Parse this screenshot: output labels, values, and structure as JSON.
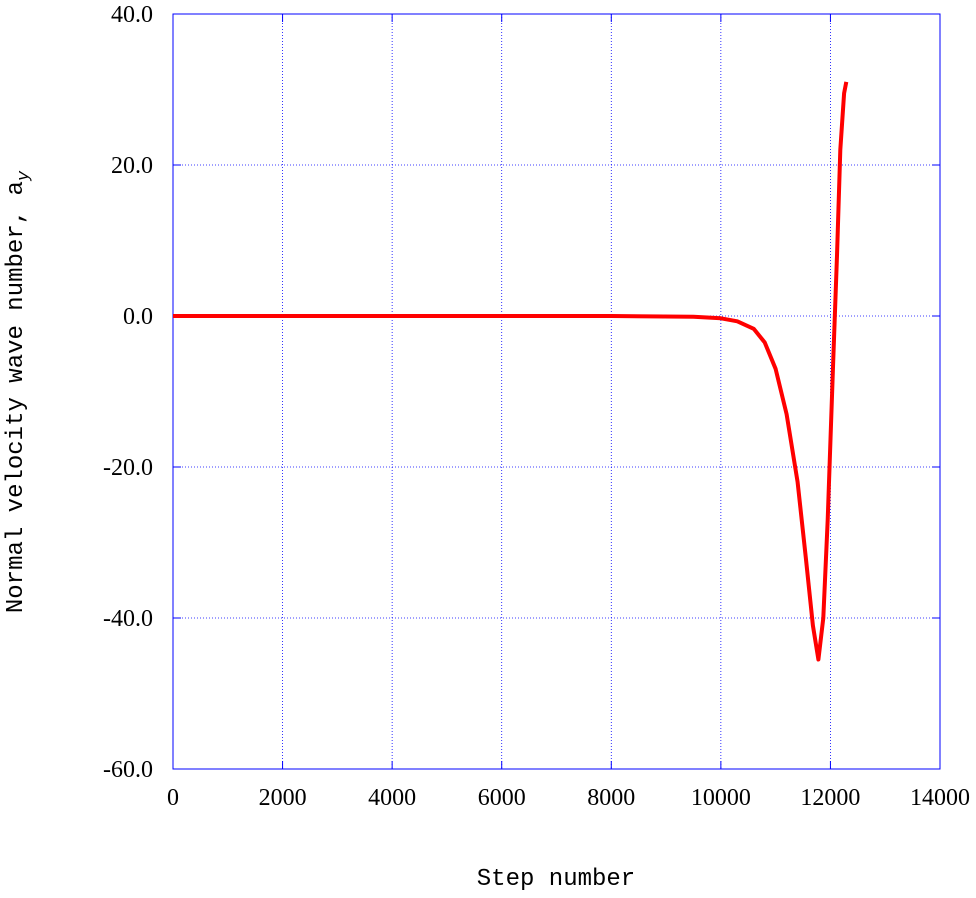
{
  "chart_data": {
    "type": "line",
    "xlabel": "Step number",
    "ylabel": "Normal velocity wave number, a",
    "ylabel_sub": "y",
    "x": [
      0,
      2000,
      4000,
      6000,
      8000,
      9500,
      10000,
      10300,
      10600,
      10800,
      11000,
      11200,
      11400,
      11550,
      11680,
      11780,
      11870,
      11950,
      12050,
      12120,
      12180,
      12250,
      12290
    ],
    "series": [
      {
        "color": "#ff0000",
        "values": [
          0,
          0,
          0,
          0,
          0,
          -0.1,
          -0.3,
          -0.7,
          -1.7,
          -3.5,
          -7,
          -13,
          -22,
          -32,
          -41,
          -45.5,
          -40,
          -27,
          -6,
          8,
          22,
          29.5,
          31
        ]
      }
    ],
    "xlim": [
      0,
      14000
    ],
    "xticks": [
      0,
      2000,
      4000,
      6000,
      8000,
      10000,
      12000,
      14000
    ],
    "ylim": [
      -60,
      40
    ],
    "yticks": [
      {
        "value": -60,
        "label": "-60.0"
      },
      {
        "value": -40,
        "label": "-40.0"
      },
      {
        "value": -20,
        "label": "-20.0"
      },
      {
        "value": 0,
        "label": "0.0"
      },
      {
        "value": 20,
        "label": "20.0"
      },
      {
        "value": 40,
        "label": "40.0"
      }
    ],
    "grid": true,
    "grid_color": "#0000ff"
  }
}
